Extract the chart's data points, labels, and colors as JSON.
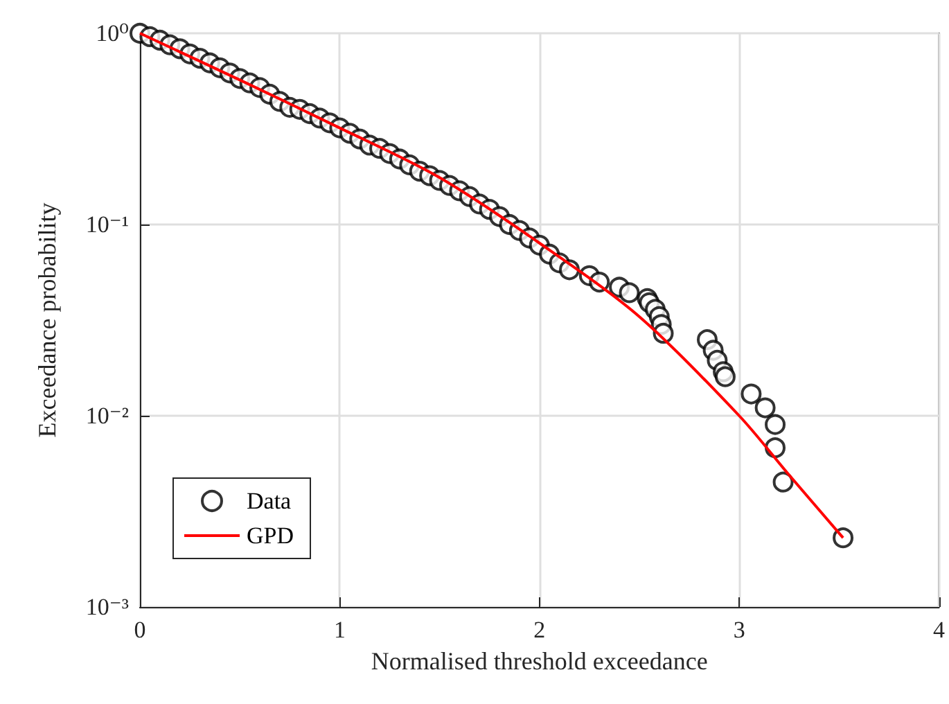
{
  "chart_data": {
    "type": "scatter",
    "xlabel": "Normalised threshold exceedance",
    "ylabel": "Exceedance probability",
    "series": [
      {
        "name": "Data",
        "type": "scatter",
        "color": "#000000",
        "marker": "circle",
        "x": [
          0,
          0.05,
          0.1,
          0.15,
          0.2,
          0.25,
          0.3,
          0.35,
          0.4,
          0.45,
          0.5,
          0.55,
          0.6,
          0.65,
          0.7,
          0.75,
          0.8,
          0.85,
          0.9,
          0.95,
          1.0,
          1.05,
          1.1,
          1.15,
          1.2,
          1.25,
          1.3,
          1.35,
          1.4,
          1.45,
          1.5,
          1.55,
          1.6,
          1.65,
          1.7,
          1.75,
          1.8,
          1.85,
          1.9,
          1.95,
          2.0,
          2.05,
          2.1,
          2.15,
          2.25,
          2.3,
          2.4,
          2.45,
          2.54,
          2.55,
          2.58,
          2.6,
          2.61,
          2.62,
          2.84,
          2.87,
          2.89,
          2.92,
          2.93,
          3.06,
          3.13,
          3.18,
          3.18,
          3.22,
          3.52
        ],
        "values": [
          1.0,
          0.96,
          0.92,
          0.87,
          0.83,
          0.78,
          0.74,
          0.7,
          0.66,
          0.62,
          0.58,
          0.55,
          0.52,
          0.48,
          0.44,
          0.41,
          0.4,
          0.38,
          0.36,
          0.34,
          0.32,
          0.3,
          0.28,
          0.26,
          0.25,
          0.235,
          0.22,
          0.205,
          0.19,
          0.18,
          0.17,
          0.16,
          0.15,
          0.14,
          0.128,
          0.12,
          0.11,
          0.1,
          0.093,
          0.085,
          0.078,
          0.07,
          0.063,
          0.058,
          0.054,
          0.05,
          0.047,
          0.044,
          0.041,
          0.039,
          0.036,
          0.033,
          0.03,
          0.027,
          0.025,
          0.022,
          0.0195,
          0.017,
          0.016,
          0.013,
          0.011,
          0.009,
          0.0068,
          0.0045,
          0.0023
        ]
      },
      {
        "name": "GPD",
        "type": "line",
        "color": "#ff0000",
        "marker": "none",
        "line_style": "solid",
        "x": [
          0,
          0.5,
          1,
          1.5,
          2,
          2.5,
          3,
          3.25,
          3.52
        ],
        "values": [
          1.0,
          0.57,
          0.32,
          0.176,
          0.08,
          0.033,
          0.01,
          0.0049,
          0.0023
        ]
      }
    ],
    "xlim": [
      0,
      4
    ],
    "xticks": [
      0,
      1,
      2,
      3,
      4
    ],
    "ylim": [
      0.001,
      1
    ],
    "yticks": [
      {
        "value": 0.001,
        "label": "10⁻³"
      },
      {
        "value": 0.01,
        "label": "10⁻²"
      },
      {
        "value": 0.1,
        "label": "10⁻¹"
      },
      {
        "value": 1,
        "label": "10⁰"
      }
    ],
    "log": "y",
    "grid": true,
    "legend": "bottom left"
  }
}
